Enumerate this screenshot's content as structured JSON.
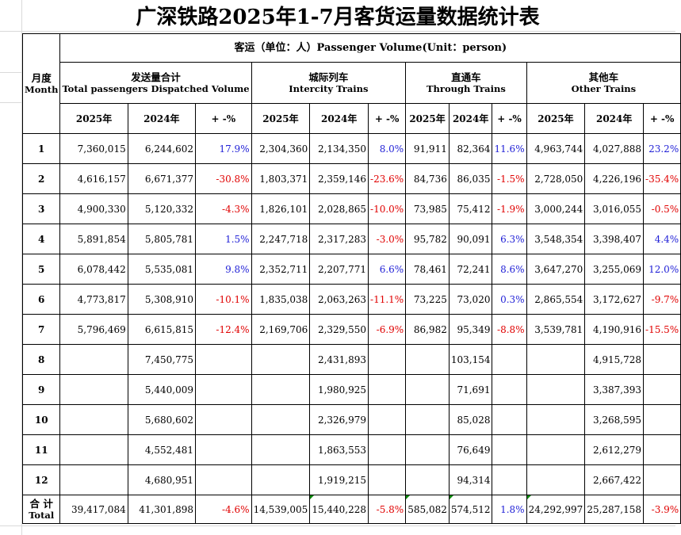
{
  "title": "广深铁路2025年1-7月客货运量数据统计表",
  "header": {
    "month_cn": "月度",
    "month_en": "Month",
    "passenger_band": "客运（单位：人）Passenger Volume(Unit：person)",
    "groups": [
      {
        "cn": "发送量合计",
        "en": "Total passengers Dispatched Volume"
      },
      {
        "cn": "城际列车",
        "en": "Intercity Trains"
      },
      {
        "cn": "直通车",
        "en": "Through Trains"
      },
      {
        "cn": "其他车",
        "en": "Other Trains"
      }
    ],
    "sub": [
      "2025年",
      "2024年",
      "+ -%"
    ]
  },
  "rows": [
    {
      "month": "1",
      "total": [
        "7,360,015",
        "6,244,602",
        "17.9%"
      ],
      "intercity": [
        "2,304,360",
        "2,134,350",
        "8.0%"
      ],
      "through": [
        "91,911",
        "82,364",
        "11.6%"
      ],
      "other": [
        "4,963,744",
        "4,027,888",
        "23.2%"
      ]
    },
    {
      "month": "2",
      "total": [
        "4,616,157",
        "6,671,377",
        "-30.8%"
      ],
      "intercity": [
        "1,803,371",
        "2,359,146",
        "-23.6%"
      ],
      "through": [
        "84,736",
        "86,035",
        "-1.5%"
      ],
      "other": [
        "2,728,050",
        "4,226,196",
        "-35.4%"
      ]
    },
    {
      "month": "3",
      "total": [
        "4,900,330",
        "5,120,332",
        "-4.3%"
      ],
      "intercity": [
        "1,826,101",
        "2,028,865",
        "-10.0%"
      ],
      "through": [
        "73,985",
        "75,412",
        "-1.9%"
      ],
      "other": [
        "3,000,244",
        "3,016,055",
        "-0.5%"
      ]
    },
    {
      "month": "4",
      "total": [
        "5,891,854",
        "5,805,781",
        "1.5%"
      ],
      "intercity": [
        "2,247,718",
        "2,317,283",
        "-3.0%"
      ],
      "through": [
        "95,782",
        "90,091",
        "6.3%"
      ],
      "other": [
        "3,548,354",
        "3,398,407",
        "4.4%"
      ]
    },
    {
      "month": "5",
      "total": [
        "6,078,442",
        "5,535,081",
        "9.8%"
      ],
      "intercity": [
        "2,352,711",
        "2,207,771",
        "6.6%"
      ],
      "through": [
        "78,461",
        "72,241",
        "8.6%"
      ],
      "other": [
        "3,647,270",
        "3,255,069",
        "12.0%"
      ]
    },
    {
      "month": "6",
      "total": [
        "4,773,817",
        "5,308,910",
        "-10.1%"
      ],
      "intercity": [
        "1,835,038",
        "2,063,263",
        "-11.1%"
      ],
      "through": [
        "73,225",
        "73,020",
        "0.3%"
      ],
      "other": [
        "2,865,554",
        "3,172,627",
        "-9.7%"
      ]
    },
    {
      "month": "7",
      "total": [
        "5,796,469",
        "6,615,815",
        "-12.4%"
      ],
      "intercity": [
        "2,169,706",
        "2,329,550",
        "-6.9%"
      ],
      "through": [
        "86,982",
        "95,349",
        "-8.8%"
      ],
      "other": [
        "3,539,781",
        "4,190,916",
        "-15.5%"
      ]
    },
    {
      "month": "8",
      "total": [
        "",
        "7,450,775",
        ""
      ],
      "intercity": [
        "",
        "2,431,893",
        ""
      ],
      "through": [
        "",
        "103,154",
        ""
      ],
      "other": [
        "",
        "4,915,728",
        ""
      ]
    },
    {
      "month": "9",
      "total": [
        "",
        "5,440,009",
        ""
      ],
      "intercity": [
        "",
        "1,980,925",
        ""
      ],
      "through": [
        "",
        "71,691",
        ""
      ],
      "other": [
        "",
        "3,387,393",
        ""
      ]
    },
    {
      "month": "10",
      "total": [
        "",
        "5,680,602",
        ""
      ],
      "intercity": [
        "",
        "2,326,979",
        ""
      ],
      "through": [
        "",
        "85,028",
        ""
      ],
      "other": [
        "",
        "3,268,595",
        ""
      ]
    },
    {
      "month": "11",
      "total": [
        "",
        "4,552,481",
        ""
      ],
      "intercity": [
        "",
        "1,863,553",
        ""
      ],
      "through": [
        "",
        "76,649",
        ""
      ],
      "other": [
        "",
        "2,612,279",
        ""
      ]
    },
    {
      "month": "12",
      "total": [
        "",
        "4,680,951",
        ""
      ],
      "intercity": [
        "",
        "1,919,215",
        ""
      ],
      "through": [
        "",
        "94,314",
        ""
      ],
      "other": [
        "",
        "2,667,422",
        ""
      ]
    }
  ],
  "totals": {
    "label_cn": "合 计",
    "label_en": "Total",
    "total": [
      "39,417,084",
      "41,301,898",
      "-4.6%"
    ],
    "intercity": [
      "14,539,005",
      "15,440,228",
      "-5.8%"
    ],
    "through": [
      "585,082",
      "574,512",
      "1.8%"
    ],
    "other": [
      "24,292,997",
      "25,287,158",
      "-3.9%"
    ]
  },
  "colors": {
    "positive": "#1f1fd6",
    "negative": "#e00000",
    "border": "#000000",
    "gridline": "#d9d9d9",
    "error_triangle": "#0a8a0a"
  }
}
